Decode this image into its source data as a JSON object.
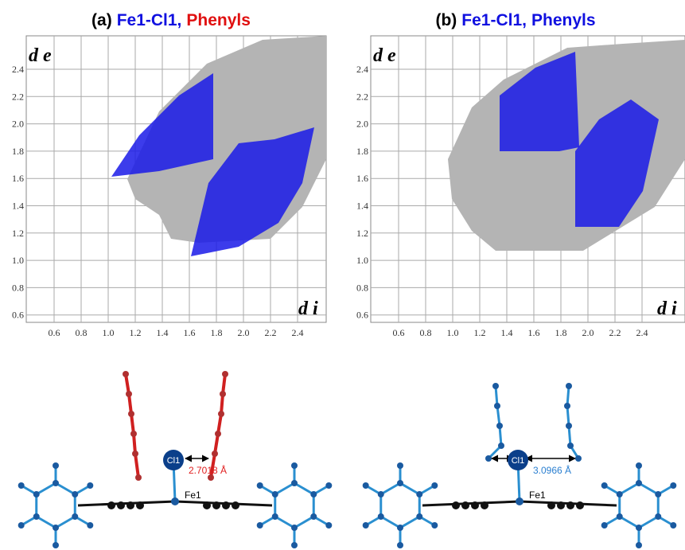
{
  "panels": [
    {
      "title": {
        "label": "(a)",
        "bond": "Fe1-Cl1,",
        "group": "Phenyls"
      },
      "y_axis_label": "d e",
      "x_axis_label": "d i",
      "xticks": [
        "0.6",
        "0.8",
        "1.0",
        "1.2",
        "1.4",
        "1.6",
        "1.8",
        "2.0",
        "2.2",
        "2.4"
      ],
      "yticks": [
        "2.4",
        "2.2",
        "2.0",
        "1.8",
        "1.6",
        "1.4",
        "1.2",
        "1.0",
        "0.8",
        "0.6"
      ],
      "atom_cl": "Cl1",
      "atom_fe": "Fe1",
      "distance": "2.7018 Å"
    },
    {
      "title": {
        "label": "(b)",
        "bond": "Fe1-Cl1,",
        "group": "Phenyls"
      },
      "y_axis_label": "d e",
      "x_axis_label": "d i",
      "xticks": [
        "0.6",
        "0.8",
        "1.0",
        "1.2",
        "1.4",
        "1.6",
        "1.8",
        "2.0",
        "2.2",
        "2.4"
      ],
      "yticks": [
        "2.4",
        "2.2",
        "2.0",
        "1.8",
        "1.6",
        "1.4",
        "1.2",
        "1.0",
        "0.8",
        "0.6"
      ],
      "atom_cl": "Cl1",
      "atom_fe": "Fe1",
      "distance": "3.0966 Å"
    }
  ]
}
